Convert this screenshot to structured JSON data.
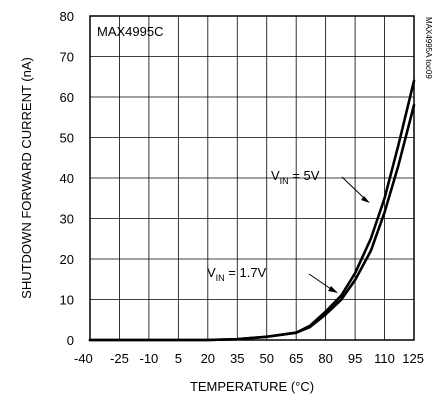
{
  "chart_data": {
    "type": "line",
    "title": "MAX4995C",
    "side_note": "MAX4995A toc09",
    "xlabel": "TEMPERATURE (°C)",
    "ylabel": "SHUTDOWN FORWARD CURRENT (nA)",
    "xlim": [
      -40,
      125
    ],
    "ylim": [
      0,
      80
    ],
    "x_ticks": [
      -40,
      -25,
      -10,
      5,
      20,
      35,
      50,
      65,
      80,
      95,
      110,
      125
    ],
    "y_ticks": [
      0,
      10,
      20,
      30,
      40,
      50,
      60,
      70,
      80
    ],
    "grid": true,
    "series": [
      {
        "name": "VIN = 5V",
        "label_main": "V",
        "label_sub": "IN",
        "label_rest": " = 5V",
        "x": [
          -40,
          -25,
          -10,
          5,
          20,
          35,
          50,
          65,
          72,
          80,
          88,
          95,
          103,
          110,
          117,
          125
        ],
        "y": [
          0,
          0,
          0,
          0,
          0,
          0.2,
          0.8,
          1.8,
          3.5,
          7,
          11,
          16.5,
          25,
          35,
          48,
          64
        ]
      },
      {
        "name": "VIN = 1.7V",
        "label_main": "V",
        "label_sub": "IN",
        "label_rest": " = 1.7V",
        "x": [
          -40,
          -25,
          -10,
          5,
          20,
          35,
          50,
          65,
          72,
          80,
          88,
          95,
          103,
          110,
          117,
          125
        ],
        "y": [
          0,
          0,
          0,
          0,
          0,
          0.2,
          0.8,
          1.8,
          3.2,
          6.3,
          10,
          14.8,
          22,
          31.5,
          43,
          58
        ]
      }
    ]
  }
}
